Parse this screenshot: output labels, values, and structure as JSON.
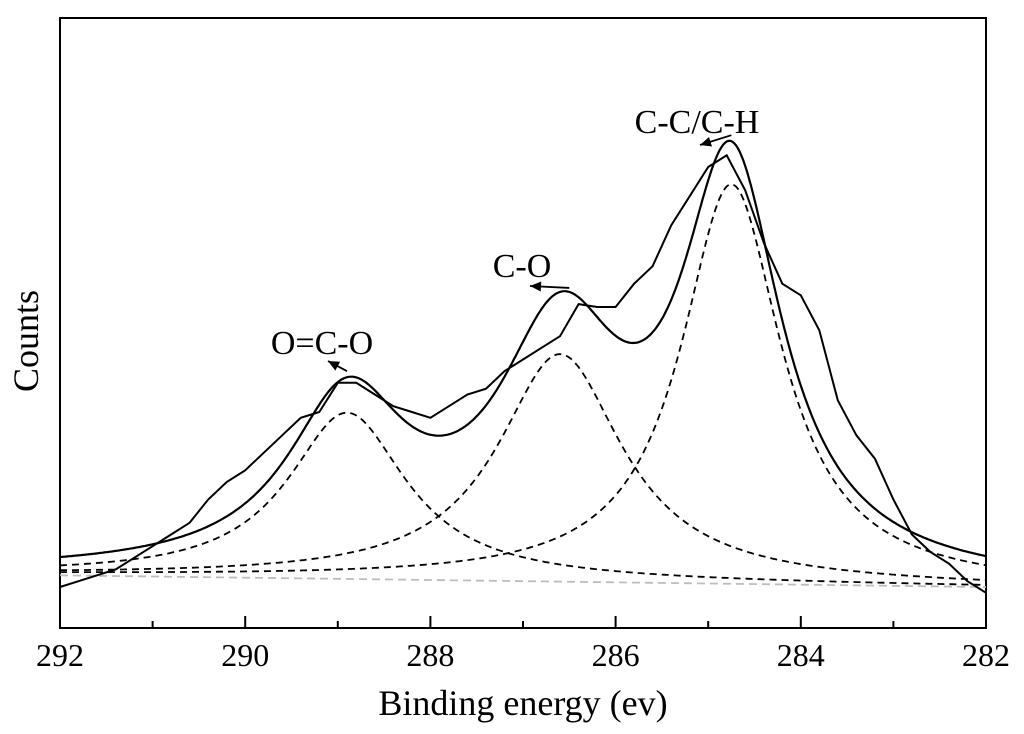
{
  "chart_data": {
    "type": "line",
    "title": "",
    "xlabel": "Binding energy (ev)",
    "ylabel": "Counts",
    "xlim": [
      292,
      282
    ],
    "ylim": [
      0,
      1.12
    ],
    "x_reversed": true,
    "grid": false,
    "x_ticks": [
      292,
      290,
      288,
      286,
      284,
      282
    ],
    "x_tick_labels": [
      "292",
      "290",
      "288",
      "286",
      "284",
      "282"
    ],
    "annotations": [
      {
        "text": "O=C-O",
        "x": 288.9
      },
      {
        "text": "C-O",
        "x": 286.5
      },
      {
        "text": "C-C/C-H",
        "x": 284.75
      }
    ],
    "components": [
      {
        "label": "O=C-O",
        "center": 288.9,
        "height": 0.285,
        "width": 0.78
      },
      {
        "label": "C-O",
        "center": 286.6,
        "height": 0.39,
        "width": 0.82
      },
      {
        "label": "C-C/C-H",
        "center": 284.75,
        "height": 0.685,
        "width": 0.66
      }
    ],
    "baseline": {
      "left": 0.02,
      "right": 0.0
    },
    "raw_data": {
      "x": [
        292.0,
        291.8,
        291.6,
        291.4,
        291.2,
        291.0,
        290.8,
        290.6,
        290.4,
        290.2,
        290.0,
        289.8,
        289.6,
        289.4,
        289.2,
        289.0,
        288.8,
        288.6,
        288.4,
        288.2,
        288.0,
        287.8,
        287.6,
        287.4,
        287.2,
        287.0,
        286.8,
        286.6,
        286.4,
        286.2,
        286.0,
        285.8,
        285.6,
        285.4,
        285.2,
        285.0,
        284.8,
        284.6,
        284.4,
        284.2,
        284.0,
        283.8,
        283.6,
        283.4,
        283.2,
        283.0,
        282.8,
        282.6,
        282.4,
        282.2,
        282.0
      ],
      "y": [
        0.0,
        0.01,
        0.02,
        0.03,
        0.05,
        0.07,
        0.09,
        0.11,
        0.15,
        0.18,
        0.2,
        0.23,
        0.26,
        0.29,
        0.3,
        0.35,
        0.35,
        0.33,
        0.31,
        0.3,
        0.29,
        0.31,
        0.33,
        0.34,
        0.37,
        0.39,
        0.41,
        0.43,
        0.485,
        0.48,
        0.48,
        0.52,
        0.55,
        0.62,
        0.67,
        0.72,
        0.74,
        0.68,
        0.59,
        0.52,
        0.5,
        0.44,
        0.32,
        0.26,
        0.22,
        0.15,
        0.09,
        0.06,
        0.04,
        0.01,
        -0.01
      ]
    }
  }
}
